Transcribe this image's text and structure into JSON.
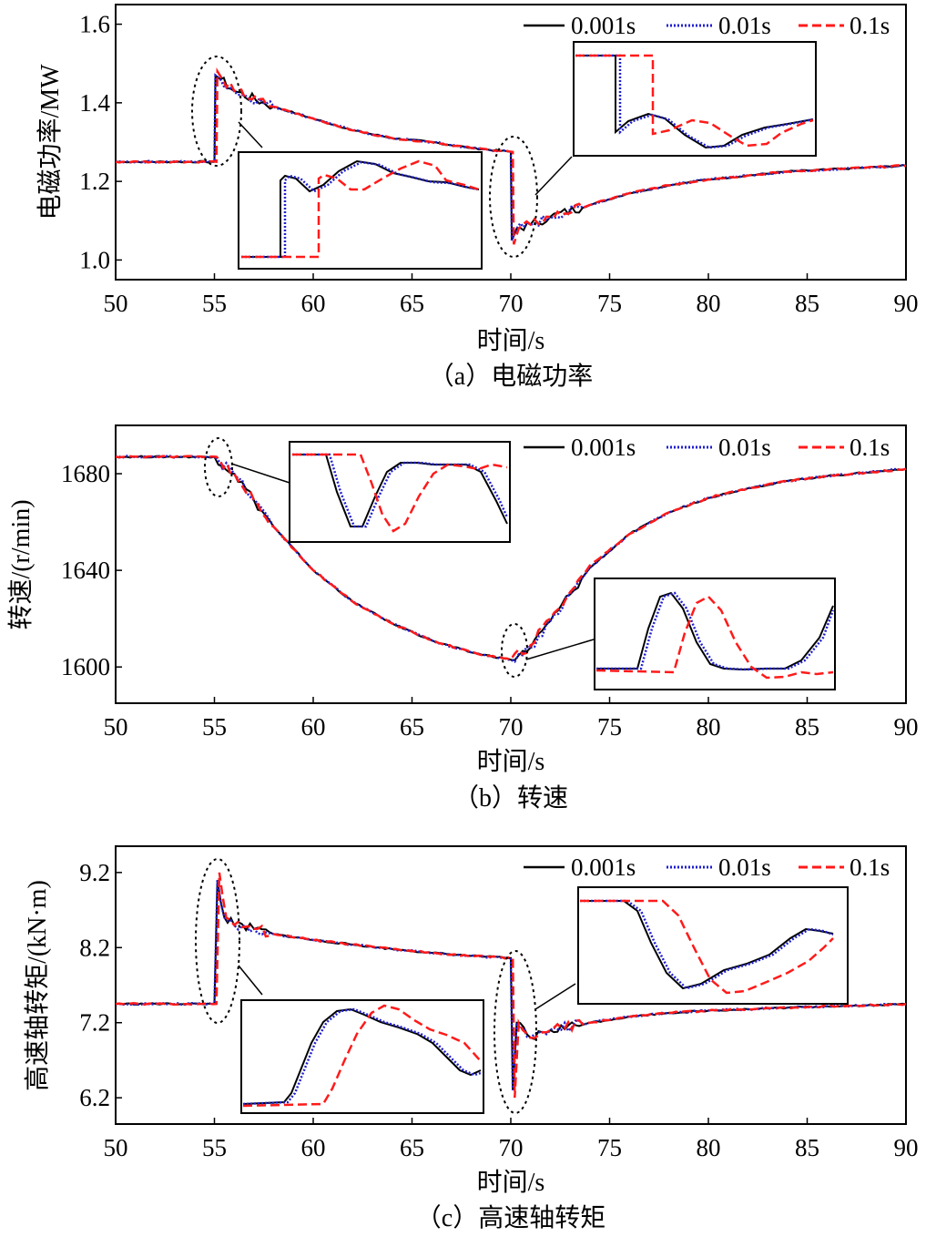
{
  "colors": {
    "s001": "#000000",
    "s01": "#1f1fd0",
    "s1": "#ff1a1a"
  },
  "legend_series": [
    "0.001s",
    "0.01s",
    "0.1s"
  ],
  "chart_data": [
    {
      "type": "line",
      "title": "（a）电磁功率",
      "xlabel": "时间/s",
      "ylabel": "电磁功率/MW",
      "xlim": [
        50,
        90
      ],
      "ylim": [
        0.95,
        1.65
      ],
      "xticks": [
        50,
        55,
        60,
        65,
        70,
        75,
        80,
        85,
        90
      ],
      "xtick_labels": [
        "50",
        "55",
        "60",
        "65",
        "70",
        "75",
        "80",
        "85",
        "90"
      ],
      "yticks": [
        1.0,
        1.2,
        1.4,
        1.6
      ],
      "ytick_labels": [
        "1.0",
        "1.2",
        "1.4",
        "1.6"
      ],
      "series": [
        {
          "name": "0.001s",
          "style": "solid",
          "x": [
            50,
            55.0,
            55.05,
            55.3,
            56,
            58,
            60,
            62,
            64,
            66,
            68,
            70,
            70.05,
            70.3,
            71,
            72,
            74,
            76,
            78,
            80,
            82,
            84,
            86,
            88,
            90
          ],
          "y": [
            1.25,
            1.25,
            1.47,
            1.46,
            1.43,
            1.39,
            1.36,
            1.33,
            1.31,
            1.3,
            1.285,
            1.275,
            1.05,
            1.08,
            1.09,
            1.11,
            1.14,
            1.17,
            1.19,
            1.205,
            1.215,
            1.225,
            1.23,
            1.235,
            1.24
          ]
        },
        {
          "name": "0.01s",
          "style": "dotted",
          "x": [
            50,
            55.0,
            55.05,
            55.3,
            56,
            58,
            60,
            62,
            64,
            66,
            68,
            70,
            70.05,
            70.3,
            71,
            72,
            74,
            76,
            78,
            80,
            82,
            84,
            86,
            88,
            90
          ],
          "y": [
            1.25,
            1.25,
            1.47,
            1.46,
            1.43,
            1.39,
            1.36,
            1.33,
            1.31,
            1.3,
            1.285,
            1.275,
            1.05,
            1.08,
            1.09,
            1.11,
            1.14,
            1.17,
            1.19,
            1.205,
            1.215,
            1.225,
            1.23,
            1.235,
            1.24
          ]
        },
        {
          "name": "0.1s",
          "style": "dashed",
          "x": [
            50,
            55.1,
            55.15,
            55.4,
            56,
            58,
            60,
            62,
            64,
            66,
            68,
            70.1,
            70.15,
            70.4,
            71,
            72,
            74,
            76,
            78,
            80,
            82,
            84,
            86,
            88,
            90
          ],
          "y": [
            1.25,
            1.25,
            1.48,
            1.46,
            1.43,
            1.39,
            1.36,
            1.33,
            1.31,
            1.3,
            1.285,
            1.275,
            1.04,
            1.08,
            1.09,
            1.11,
            1.14,
            1.17,
            1.19,
            1.205,
            1.215,
            1.225,
            1.23,
            1.235,
            1.24
          ]
        }
      ]
    },
    {
      "type": "line",
      "title": "（b）转速",
      "xlabel": "时间/s",
      "ylabel": "转速/(r/min)",
      "xlim": [
        50,
        90
      ],
      "ylim": [
        1585,
        1700
      ],
      "xticks": [
        50,
        55,
        60,
        65,
        70,
        75,
        80,
        85,
        90
      ],
      "xtick_labels": [
        "50",
        "55",
        "60",
        "65",
        "70",
        "75",
        "80",
        "85",
        "90"
      ],
      "yticks": [
        1600,
        1640,
        1680
      ],
      "ytick_labels": [
        "1600",
        "1640",
        "1680"
      ],
      "series": [
        {
          "name": "0.001s",
          "style": "solid",
          "x": [
            50,
            55,
            56,
            57,
            58,
            60,
            62,
            64,
            66,
            68,
            70,
            71,
            72,
            73,
            74,
            76,
            78,
            80,
            82,
            84,
            86,
            88,
            90
          ],
          "y": [
            1687,
            1687,
            1680,
            1669,
            1658,
            1640,
            1627,
            1618,
            1611,
            1606,
            1603,
            1608,
            1619,
            1630,
            1641,
            1655,
            1664,
            1670,
            1674,
            1677,
            1679,
            1680.5,
            1682
          ]
        },
        {
          "name": "0.01s",
          "style": "dotted",
          "x": [
            50,
            55,
            56,
            57,
            58,
            60,
            62,
            64,
            66,
            68,
            70,
            71,
            72,
            73,
            74,
            76,
            78,
            80,
            82,
            84,
            86,
            88,
            90
          ],
          "y": [
            1687,
            1687,
            1680,
            1669,
            1658,
            1640,
            1627,
            1618,
            1611,
            1606,
            1603,
            1608,
            1619,
            1630,
            1641,
            1655,
            1664,
            1670,
            1674,
            1677,
            1679,
            1680.5,
            1682
          ]
        },
        {
          "name": "0.1s",
          "style": "dashed",
          "x": [
            50,
            55.1,
            56,
            57,
            58,
            60,
            62,
            64,
            66,
            68,
            70,
            71,
            72,
            73,
            74,
            76,
            78,
            80,
            82,
            84,
            86,
            88,
            90
          ],
          "y": [
            1687,
            1687,
            1680,
            1669,
            1658,
            1640,
            1627,
            1618,
            1611,
            1606,
            1603,
            1609,
            1620,
            1631,
            1642,
            1655,
            1664,
            1670,
            1674,
            1677,
            1679,
            1680.5,
            1682
          ]
        }
      ]
    },
    {
      "type": "line",
      "title": "（c）高速轴转矩",
      "xlabel": "时间/s",
      "ylabel": "高速轴转矩/(kN·m)",
      "xlim": [
        50,
        90
      ],
      "ylim": [
        5.85,
        9.55
      ],
      "xticks": [
        50,
        55,
        60,
        65,
        70,
        75,
        80,
        85,
        90
      ],
      "xtick_labels": [
        "50",
        "55",
        "60",
        "65",
        "70",
        "75",
        "80",
        "85",
        "90"
      ],
      "yticks": [
        6.2,
        7.2,
        8.2,
        9.2
      ],
      "ytick_labels": [
        "6.2",
        "7.2",
        "8.2",
        "9.2"
      ],
      "series": [
        {
          "name": "0.001s",
          "style": "solid",
          "x": [
            50,
            55.0,
            55.15,
            55.5,
            56,
            57,
            58,
            60,
            62,
            64,
            66,
            68,
            70,
            70.1,
            70.3,
            71,
            72,
            74,
            76,
            78,
            80,
            82,
            84,
            86,
            88,
            90
          ],
          "y": [
            7.45,
            7.45,
            9.1,
            8.6,
            8.5,
            8.45,
            8.38,
            8.3,
            8.24,
            8.18,
            8.13,
            8.09,
            8.06,
            6.3,
            7.2,
            7.0,
            7.1,
            7.2,
            7.28,
            7.33,
            7.36,
            7.38,
            7.4,
            7.42,
            7.43,
            7.45
          ]
        },
        {
          "name": "0.01s",
          "style": "dotted",
          "x": [
            50,
            55.0,
            55.15,
            55.5,
            56,
            57,
            58,
            60,
            62,
            64,
            66,
            68,
            70,
            70.1,
            70.3,
            71,
            72,
            74,
            76,
            78,
            80,
            82,
            84,
            86,
            88,
            90
          ],
          "y": [
            7.45,
            7.45,
            9.1,
            8.6,
            8.5,
            8.45,
            8.38,
            8.3,
            8.24,
            8.18,
            8.13,
            8.09,
            8.06,
            6.3,
            7.2,
            7.0,
            7.1,
            7.2,
            7.28,
            7.33,
            7.36,
            7.38,
            7.4,
            7.42,
            7.43,
            7.45
          ]
        },
        {
          "name": "0.1s",
          "style": "dashed",
          "x": [
            50,
            55.1,
            55.25,
            55.6,
            56,
            57,
            58,
            60,
            62,
            64,
            66,
            68,
            70.1,
            70.2,
            70.4,
            71,
            72,
            74,
            76,
            78,
            80,
            82,
            84,
            86,
            88,
            90
          ],
          "y": [
            7.45,
            7.45,
            9.2,
            8.6,
            8.5,
            8.45,
            8.38,
            8.3,
            8.24,
            8.18,
            8.13,
            8.09,
            8.06,
            6.2,
            7.2,
            7.0,
            7.1,
            7.2,
            7.28,
            7.33,
            7.36,
            7.38,
            7.4,
            7.42,
            7.43,
            7.45
          ]
        }
      ]
    }
  ]
}
